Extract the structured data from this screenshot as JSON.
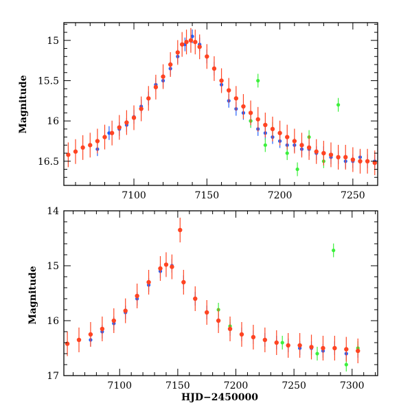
{
  "chart_data": [
    {
      "type": "scatter",
      "title": "",
      "xlabel": "",
      "ylabel": "Magnitude",
      "xlim": [
        7052,
        7267
      ],
      "ylim": [
        16.8,
        14.78
      ],
      "y_inverted": true,
      "xticks": [
        7100,
        7150,
        7200,
        7250
      ],
      "yticks": [
        15,
        15.5,
        16,
        16.5
      ],
      "ytick_labels": [
        "15",
        "15.5",
        "16",
        "16.5"
      ],
      "series": [
        {
          "name": "blue",
          "color": "#1f5fff",
          "x": [
            7075,
            7083,
            7090,
            7095,
            7100,
            7105,
            7110,
            7115,
            7120,
            7125,
            7130,
            7135,
            7140,
            7145,
            7150,
            7155,
            7160,
            7165,
            7170,
            7175,
            7180,
            7185,
            7190,
            7195,
            7200,
            7205,
            7210,
            7215,
            7220,
            7225,
            7230,
            7235,
            7240,
            7245,
            7250,
            7255,
            7260,
            7265
          ],
          "y": [
            16.35,
            16.15,
            16.1,
            16.05,
            15.95,
            15.82,
            15.72,
            15.55,
            15.5,
            15.35,
            15.2,
            15.05,
            14.95,
            15.05,
            15.2,
            15.35,
            15.55,
            15.75,
            15.85,
            15.9,
            16.0,
            16.1,
            16.15,
            16.2,
            16.25,
            16.3,
            16.3,
            16.35,
            16.35,
            16.4,
            16.4,
            16.45,
            16.45,
            16.5,
            16.5,
            16.45,
            16.5,
            16.5
          ]
        },
        {
          "name": "green",
          "color": "#3cf03c",
          "x": [
            7180,
            7185,
            7190,
            7195,
            7205,
            7212,
            7220,
            7230,
            7240
          ],
          "y": [
            16.0,
            15.5,
            16.3,
            16.1,
            16.4,
            16.6,
            16.2,
            16.5,
            15.8
          ]
        },
        {
          "name": "red",
          "color": "#ff4422",
          "x": [
            7055,
            7060,
            7065,
            7070,
            7075,
            7080,
            7085,
            7090,
            7095,
            7100,
            7105,
            7110,
            7115,
            7120,
            7125,
            7130,
            7133,
            7136,
            7139,
            7142,
            7145,
            7150,
            7155,
            7160,
            7165,
            7170,
            7175,
            7180,
            7185,
            7190,
            7195,
            7200,
            7205,
            7210,
            7215,
            7220,
            7225,
            7230,
            7235,
            7240,
            7245,
            7250,
            7255,
            7260,
            7265
          ],
          "y": [
            16.42,
            16.38,
            16.33,
            16.3,
            16.25,
            16.2,
            16.15,
            16.08,
            16.02,
            15.96,
            15.85,
            15.72,
            15.58,
            15.45,
            15.3,
            15.15,
            15.05,
            15.02,
            15.0,
            15.02,
            15.08,
            15.2,
            15.35,
            15.5,
            15.62,
            15.72,
            15.82,
            15.9,
            15.98,
            16.05,
            16.1,
            16.15,
            16.2,
            16.25,
            16.3,
            16.33,
            16.38,
            16.4,
            16.42,
            16.45,
            16.45,
            16.48,
            16.5,
            16.5,
            16.52
          ]
        }
      ]
    },
    {
      "type": "scatter",
      "title": "",
      "xlabel": "HJD−2450000",
      "ylabel": "Magnitude",
      "xlim": [
        7052,
        7322
      ],
      "ylim": [
        17.0,
        14.0
      ],
      "y_inverted": true,
      "xticks": [
        7100,
        7150,
        7200,
        7250,
        7300
      ],
      "yticks": [
        14,
        15,
        16,
        17
      ],
      "ytick_labels": [
        "14",
        "15",
        "16",
        "17"
      ],
      "series": [
        {
          "name": "blue",
          "color": "#1f5fff",
          "x": [
            7075,
            7085,
            7095,
            7105,
            7115,
            7125,
            7135,
            7145,
            7155,
            7165,
            7175,
            7185,
            7195,
            7205,
            7215,
            7225,
            7235,
            7245,
            7255,
            7265,
            7275,
            7285,
            7295,
            7305
          ],
          "y": [
            16.35,
            16.2,
            16.05,
            15.85,
            15.6,
            15.35,
            15.1,
            15.0,
            15.3,
            15.6,
            15.85,
            16.0,
            16.15,
            16.25,
            16.3,
            16.35,
            16.4,
            16.45,
            16.5,
            16.5,
            16.55,
            16.5,
            16.6,
            16.55
          ]
        },
        {
          "name": "green",
          "color": "#3cf03c",
          "x": [
            7185,
            7195,
            7240,
            7270,
            7284,
            7295,
            7305
          ],
          "y": [
            15.8,
            16.1,
            16.4,
            16.6,
            14.72,
            16.8,
            16.5
          ]
        },
        {
          "name": "red",
          "color": "#ff4422",
          "x": [
            7055,
            7065,
            7075,
            7085,
            7095,
            7105,
            7115,
            7125,
            7135,
            7140,
            7145,
            7152,
            7155,
            7165,
            7175,
            7185,
            7195,
            7205,
            7215,
            7225,
            7235,
            7245,
            7255,
            7265,
            7275,
            7285,
            7295,
            7305
          ],
          "y": [
            16.42,
            16.35,
            16.25,
            16.15,
            16.0,
            15.82,
            15.55,
            15.3,
            15.05,
            14.98,
            15.02,
            14.35,
            15.3,
            15.6,
            15.85,
            16.0,
            16.15,
            16.25,
            16.3,
            16.35,
            16.4,
            16.45,
            16.45,
            16.48,
            16.5,
            16.5,
            16.52,
            16.55
          ]
        }
      ]
    }
  ]
}
